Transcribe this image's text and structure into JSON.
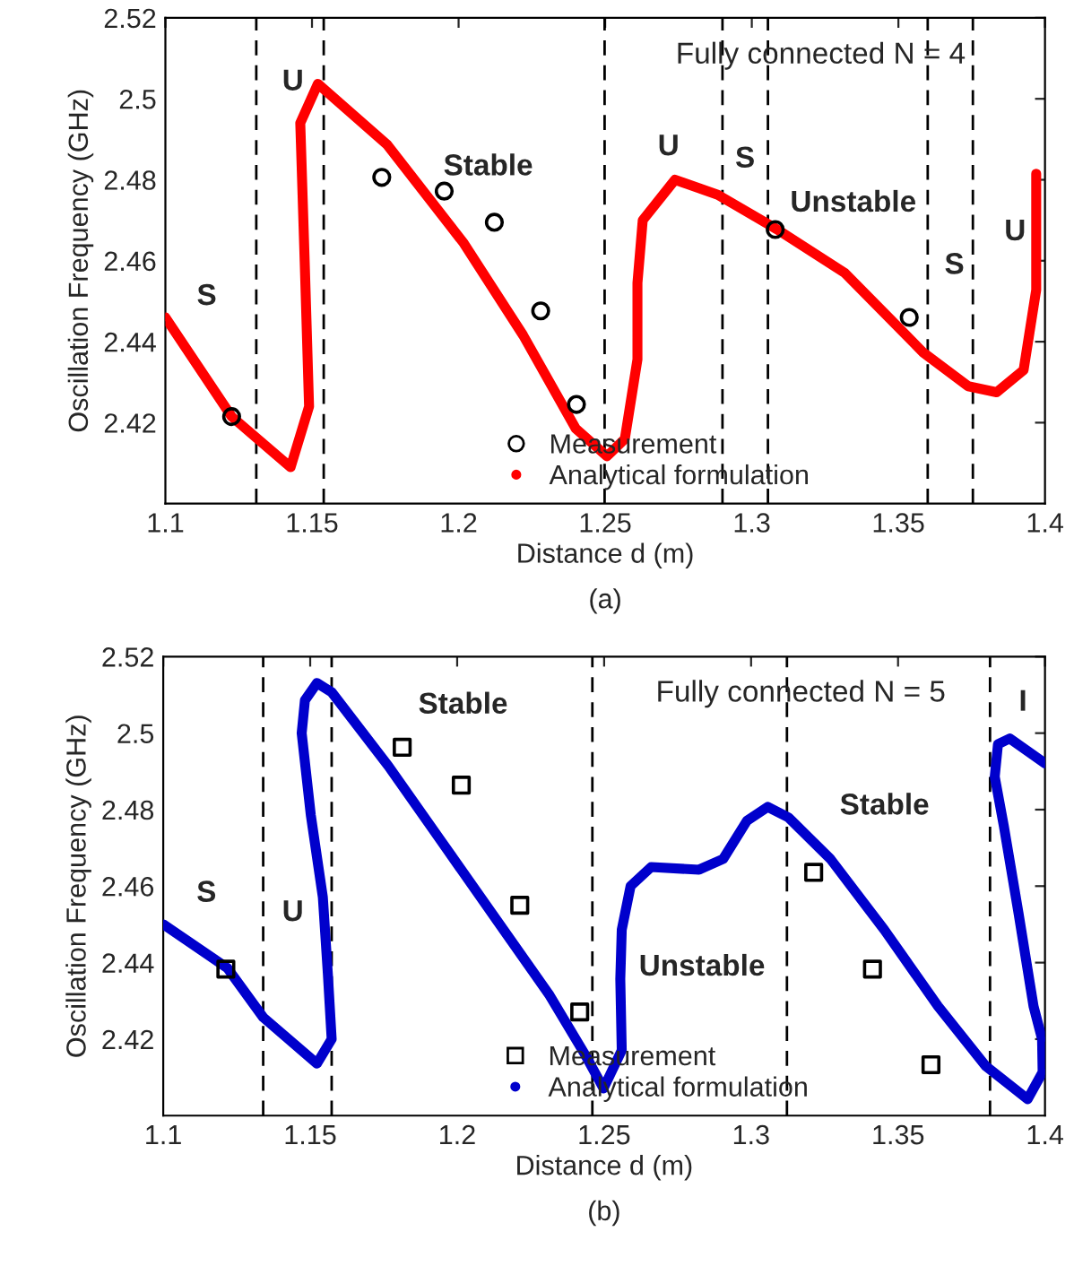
{
  "chart_data": [
    {
      "type": "line",
      "xlabel": "Distance d (m)",
      "ylabel": "Oscillation Frequency (GHz)",
      "xlim": [
        1.1,
        1.4
      ],
      "xticks": [
        1.1,
        1.15,
        1.2,
        1.25,
        1.3,
        1.35,
        1.4
      ],
      "ylim": [
        2.4,
        2.52
      ],
      "yticks": [
        2.42,
        2.44,
        2.46,
        2.48,
        2.5,
        2.52
      ],
      "grid": false,
      "legend": "bottom",
      "series": [
        {
          "name": "Measurement",
          "type": "scatter",
          "marker": "circle",
          "color": "#000000",
          "x": [
            1.1226,
            1.1738,
            1.1951,
            1.2122,
            1.228,
            1.2402,
            1.308,
            1.3537
          ],
          "values": [
            2.4215,
            2.4806,
            2.4772,
            2.4695,
            2.4476,
            2.4245,
            2.4677,
            2.446
          ]
        },
        {
          "name": "Analytical formulation",
          "marker": "circle",
          "color": "#ff0000",
          "x": [
            1.1,
            1.1226,
            1.1427,
            1.149,
            1.1475,
            1.146,
            1.152,
            1.1756,
            1.2018,
            1.222,
            1.24,
            1.2506,
            1.2567,
            1.261,
            1.261,
            1.2628,
            1.2738,
            1.2884,
            1.3085,
            1.3317,
            1.3585,
            1.3738,
            1.3835,
            1.3927,
            1.397,
            1.397
          ],
          "values": [
            2.446,
            2.4215,
            2.409,
            2.424,
            2.46,
            2.494,
            2.5037,
            2.4887,
            2.4643,
            2.4416,
            2.4185,
            2.4117,
            2.416,
            2.4356,
            2.4545,
            2.47,
            2.48,
            2.4763,
            2.4678,
            2.457,
            2.4373,
            2.429,
            2.4275,
            2.433,
            2.4528,
            2.4815
          ]
        }
      ],
      "ref_lines": [
        {
          "axis": "x",
          "value": 1.131,
          "color": "#000000",
          "line_style": "dashed"
        },
        {
          "axis": "x",
          "value": 1.154,
          "color": "#000000",
          "line_style": "dashed"
        },
        {
          "axis": "x",
          "value": 1.2498,
          "color": "#000000",
          "line_style": "dashed"
        },
        {
          "axis": "x",
          "value": 1.29,
          "color": "#000000",
          "line_style": "dashed"
        },
        {
          "axis": "x",
          "value": 1.3055,
          "color": "#000000",
          "line_style": "dashed"
        },
        {
          "axis": "x",
          "value": 1.36,
          "color": "#000000",
          "line_style": "dashed"
        },
        {
          "axis": "x",
          "value": 1.3754,
          "color": "#000000",
          "line_style": "dashed"
        }
      ],
      "annotations": [
        "S",
        "U",
        "Stable",
        "U",
        "S",
        "Unstable",
        "S",
        "U",
        "Fully connected N = 4",
        "(a)"
      ]
    },
    {
      "type": "line",
      "xlabel": "Distance d (m)",
      "ylabel": "Oscillation Frequency (GHz)",
      "xlim": [
        1.1,
        1.4
      ],
      "xticks": [
        1.1,
        1.15,
        1.2,
        1.25,
        1.3,
        1.35,
        1.4
      ],
      "ylim": [
        2.4,
        2.52
      ],
      "yticks": [
        2.42,
        2.44,
        2.46,
        2.48,
        2.5,
        2.52
      ],
      "grid": false,
      "legend": "bottom",
      "series": [
        {
          "name": "Measurement",
          "type": "scatter",
          "marker": "square",
          "color": "#000000",
          "x": [
            1.1213,
            1.1813,
            1.2014,
            1.2213,
            1.2417,
            1.3213,
            1.3413,
            1.3612
          ],
          "values": [
            2.4383,
            2.4963,
            2.4864,
            2.455,
            2.4271,
            2.4636,
            2.4383,
            2.4133
          ]
        },
        {
          "name": "Analytical formulation",
          "marker": "circle",
          "color": "#0000cc",
          "x": [
            1.1,
            1.1218,
            1.134,
            1.1523,
            1.1573,
            1.156,
            1.1543,
            1.1502,
            1.1471,
            1.1482,
            1.1523,
            1.1573,
            1.1766,
            1.1949,
            1.2132,
            1.2315,
            1.2437,
            1.2498,
            1.256,
            1.2555,
            1.256,
            1.259,
            1.266,
            1.2823,
            1.2905,
            1.2986,
            1.3057,
            1.3128,
            1.327,
            1.3453,
            1.3636,
            1.3799,
            1.3941,
            1.3992,
            1.399,
            1.3961,
            1.391,
            1.386,
            1.3829,
            1.384,
            1.388,
            1.4
          ],
          "values": [
            2.45,
            2.4386,
            2.4257,
            2.4136,
            2.42,
            2.4371,
            2.4571,
            2.4786,
            2.5,
            2.5086,
            2.5131,
            2.5107,
            2.4914,
            2.4714,
            2.4514,
            2.4314,
            2.4157,
            2.4071,
            2.4171,
            2.4357,
            2.4486,
            2.46,
            2.465,
            2.4643,
            2.4671,
            2.4771,
            2.4807,
            2.4779,
            2.4671,
            2.4486,
            2.4286,
            2.4129,
            2.4043,
            2.4114,
            2.42,
            2.4286,
            2.4529,
            2.4757,
            2.4886,
            2.4971,
            2.4986,
            2.4921
          ]
        }
      ],
      "ref_lines": [
        {
          "axis": "x",
          "value": 1.134,
          "color": "#000000",
          "line_style": "dashed"
        },
        {
          "axis": "x",
          "value": 1.1573,
          "color": "#000000",
          "line_style": "dashed"
        },
        {
          "axis": "x",
          "value": 1.246,
          "color": "#000000",
          "line_style": "dashed"
        },
        {
          "axis": "x",
          "value": 1.3122,
          "color": "#000000",
          "line_style": "dashed"
        },
        {
          "axis": "x",
          "value": 1.3813,
          "color": "#000000",
          "line_style": "dashed"
        }
      ],
      "annotations": [
        "S",
        "U",
        "Stable",
        "Unstable",
        "Stable",
        "I",
        "Fully connected N = 5",
        "(b)"
      ]
    }
  ]
}
